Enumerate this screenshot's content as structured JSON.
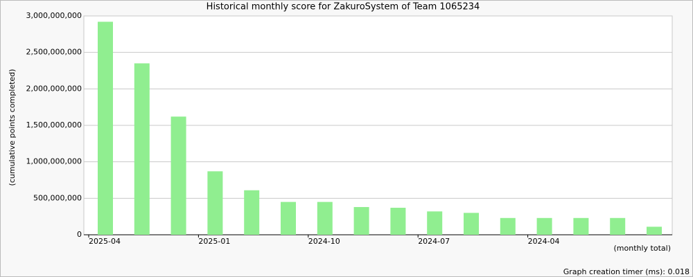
{
  "chart_data": {
    "type": "bar",
    "title": "Historical monthly score for ZakuroSystem of Team 1065234",
    "y_label": "(cumulative points completed)",
    "x_note": "(monthly total)",
    "categories": [
      "2025-04",
      null,
      null,
      "2025-01",
      null,
      null,
      "2024-10",
      null,
      null,
      "2024-07",
      null,
      null,
      "2024-04",
      null,
      null,
      null
    ],
    "values": [
      2920000000,
      2350000000,
      1620000000,
      870000000,
      610000000,
      450000000,
      450000000,
      380000000,
      370000000,
      320000000,
      300000000,
      230000000,
      230000000,
      230000000,
      230000000,
      110000000
    ],
    "color": "#90ee90",
    "ylim": [
      0,
      3000000000
    ],
    "yticks": [
      0,
      {
        "value": 500000000,
        "label": "500,000,000"
      },
      {
        "value": 1000000000,
        "label": "1,000,000,000"
      },
      {
        "value": 1500000000,
        "label": "1,500,000,000"
      },
      {
        "value": 2000000000,
        "label": "2,000,000,000"
      },
      {
        "value": 2500000000,
        "label": "2,500,000,000"
      },
      {
        "value": 3000000000,
        "label": "3,000,000,000"
      }
    ],
    "grid": true
  },
  "footer": {
    "timer": "Graph creation timer (ms): 0.018"
  }
}
